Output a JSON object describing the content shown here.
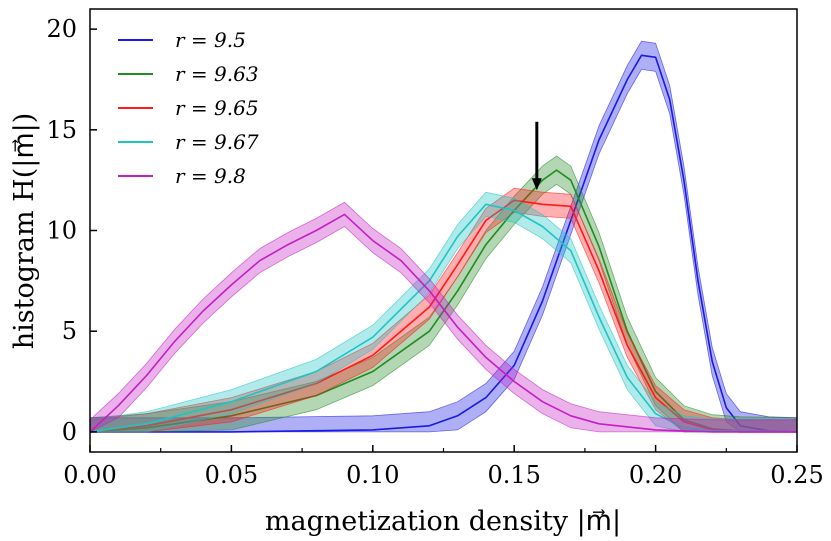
{
  "chart_data": {
    "type": "line",
    "title": "",
    "xlabel": "magnetization density   |m⃗|",
    "ylabel": "histogram   H(|m⃗|)",
    "xlim": [
      0.0,
      0.25
    ],
    "ylim": [
      -1.0,
      21.0
    ],
    "xticks": [
      0.0,
      0.05,
      0.1,
      0.15,
      0.2,
      0.25
    ],
    "xtick_labels": [
      "0.00",
      "0.05",
      "0.10",
      "0.15",
      "0.20",
      "0.25"
    ],
    "yticks": [
      0,
      5,
      10,
      15,
      20
    ],
    "ytick_labels": [
      "0",
      "5",
      "10",
      "15",
      "20"
    ],
    "legend_position": "top-left",
    "annotation": {
      "type": "arrow",
      "points_to": [
        0.158,
        12.0
      ],
      "from": [
        0.158,
        15.4
      ]
    },
    "series": [
      {
        "name": "r = 9.5",
        "color": "#1a1ae6",
        "band": 0.7,
        "x": [
          0.0,
          0.05,
          0.1,
          0.12,
          0.13,
          0.14,
          0.15,
          0.16,
          0.17,
          0.18,
          0.19,
          0.195,
          0.2,
          0.205,
          0.21,
          0.215,
          0.22,
          0.225,
          0.23,
          0.24,
          0.25
        ],
        "y": [
          0.0,
          0.0,
          0.1,
          0.3,
          0.8,
          1.7,
          3.3,
          6.5,
          10.5,
          14.5,
          17.5,
          18.7,
          18.6,
          16.5,
          12.5,
          7.5,
          3.5,
          1.2,
          0.3,
          0.05,
          0.0
        ]
      },
      {
        "name": "r = 9.63",
        "color": "#228b22",
        "band": 0.7,
        "x": [
          0.0,
          0.02,
          0.05,
          0.08,
          0.1,
          0.12,
          0.13,
          0.14,
          0.15,
          0.16,
          0.165,
          0.17,
          0.18,
          0.19,
          0.2,
          0.21,
          0.22,
          0.23,
          0.25
        ],
        "y": [
          0.0,
          0.2,
          0.8,
          1.8,
          3.0,
          5.0,
          7.0,
          9.3,
          11.0,
          12.5,
          13.0,
          12.5,
          9.2,
          5.0,
          2.0,
          0.6,
          0.15,
          0.05,
          0.0
        ]
      },
      {
        "name": "r = 9.65",
        "color": "#ff1a1a",
        "band": 0.6,
        "x": [
          0.0,
          0.02,
          0.05,
          0.08,
          0.1,
          0.12,
          0.13,
          0.14,
          0.15,
          0.16,
          0.17,
          0.18,
          0.19,
          0.2,
          0.21,
          0.22,
          0.23,
          0.25
        ],
        "y": [
          0.0,
          0.3,
          1.1,
          2.4,
          3.8,
          6.2,
          8.3,
          10.5,
          11.5,
          11.3,
          11.2,
          8.0,
          4.3,
          1.7,
          0.5,
          0.1,
          0.0,
          0.0
        ]
      },
      {
        "name": "r = 9.67",
        "color": "#1fc4c4",
        "band": 0.6,
        "x": [
          0.0,
          0.02,
          0.05,
          0.08,
          0.1,
          0.12,
          0.13,
          0.14,
          0.15,
          0.16,
          0.17,
          0.18,
          0.19,
          0.2,
          0.21,
          0.22,
          0.25
        ],
        "y": [
          0.0,
          0.4,
          1.5,
          3.0,
          4.7,
          7.5,
          9.7,
          11.3,
          11.0,
          10.2,
          9.0,
          5.7,
          2.7,
          0.9,
          0.2,
          0.05,
          0.0
        ]
      },
      {
        "name": "r = 9.8",
        "color": "#c41fc4",
        "band": 0.6,
        "x": [
          0.0,
          0.01,
          0.02,
          0.03,
          0.04,
          0.05,
          0.06,
          0.07,
          0.08,
          0.09,
          0.1,
          0.11,
          0.12,
          0.13,
          0.14,
          0.15,
          0.16,
          0.17,
          0.18,
          0.2,
          0.22,
          0.25
        ],
        "y": [
          0.0,
          1.3,
          2.8,
          4.5,
          6.0,
          7.3,
          8.5,
          9.3,
          10.0,
          10.8,
          9.5,
          8.5,
          7.0,
          5.2,
          3.7,
          2.5,
          1.5,
          0.8,
          0.4,
          0.1,
          0.0,
          0.0
        ]
      }
    ]
  }
}
